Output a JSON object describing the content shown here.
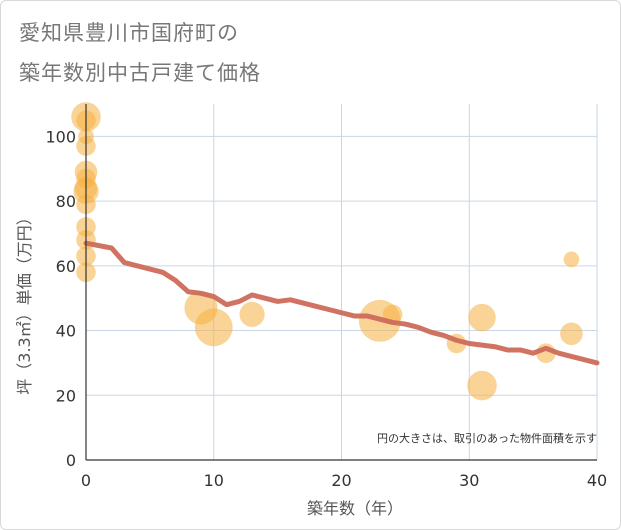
{
  "chart_data": {
    "type": "scatter",
    "title": "愛知県豊川市国府町の\n築年数別中古戸建て価格",
    "title_lines": [
      "愛知県豊川市国府町の",
      "築年数別中古戸建て価格"
    ],
    "xlabel": "築年数（年）",
    "ylabel": "坪（3.3㎡）単価（万円）",
    "xlim": [
      0,
      40
    ],
    "ylim": [
      0,
      110
    ],
    "x_ticks": [
      0,
      10,
      20,
      30,
      40
    ],
    "y_ticks": [
      0,
      20,
      40,
      60,
      80,
      100
    ],
    "grid": true,
    "note": "円の大きさは、取引のあった物件面積を示す",
    "bubble_color": "#f5b041",
    "line_color": "#cd6b5a",
    "bubbles": [
      {
        "x": 0,
        "y": 106,
        "size": 6
      },
      {
        "x": 0,
        "y": 105,
        "size": 2
      },
      {
        "x": 0,
        "y": 100,
        "size": 1
      },
      {
        "x": 0,
        "y": 97,
        "size": 2
      },
      {
        "x": 0,
        "y": 89,
        "size": 3
      },
      {
        "x": 0,
        "y": 87,
        "size": 2
      },
      {
        "x": 0,
        "y": 84,
        "size": 3
      },
      {
        "x": 0,
        "y": 83,
        "size": 4
      },
      {
        "x": 0,
        "y": 79,
        "size": 2
      },
      {
        "x": 0,
        "y": 72,
        "size": 2
      },
      {
        "x": 0,
        "y": 68,
        "size": 2
      },
      {
        "x": 0,
        "y": 63,
        "size": 2
      },
      {
        "x": 0,
        "y": 58,
        "size": 2
      },
      {
        "x": 9,
        "y": 47,
        "size": 8
      },
      {
        "x": 10,
        "y": 41,
        "size": 11
      },
      {
        "x": 13,
        "y": 45,
        "size": 4
      },
      {
        "x": 23,
        "y": 43,
        "size": 14
      },
      {
        "x": 24,
        "y": 45,
        "size": 2
      },
      {
        "x": 29,
        "y": 36,
        "size": 2
      },
      {
        "x": 31,
        "y": 44,
        "size": 5
      },
      {
        "x": 31,
        "y": 23,
        "size": 6
      },
      {
        "x": 36,
        "y": 33,
        "size": 2
      },
      {
        "x": 38,
        "y": 62,
        "size": 1
      },
      {
        "x": 38,
        "y": 39,
        "size": 3
      }
    ],
    "trend": {
      "x": [
        0,
        2,
        3,
        4,
        5,
        6,
        7,
        8,
        9,
        10,
        11,
        12,
        13,
        14,
        15,
        16,
        17,
        18,
        19,
        20,
        21,
        22,
        23,
        24,
        25,
        26,
        27,
        28,
        29,
        30,
        31,
        32,
        33,
        34,
        35,
        36,
        37,
        38,
        39,
        40
      ],
      "y": [
        67,
        65.5,
        61,
        60,
        59,
        58,
        55.5,
        52,
        51.5,
        50.5,
        48,
        49,
        51,
        50,
        49,
        49.5,
        48.5,
        47.5,
        46.5,
        45.5,
        44.5,
        44.5,
        43.5,
        42.5,
        42,
        41,
        39.5,
        38.5,
        37,
        36,
        35.5,
        35,
        34,
        34,
        33,
        34.5,
        33,
        32,
        31,
        30
      ]
    }
  }
}
